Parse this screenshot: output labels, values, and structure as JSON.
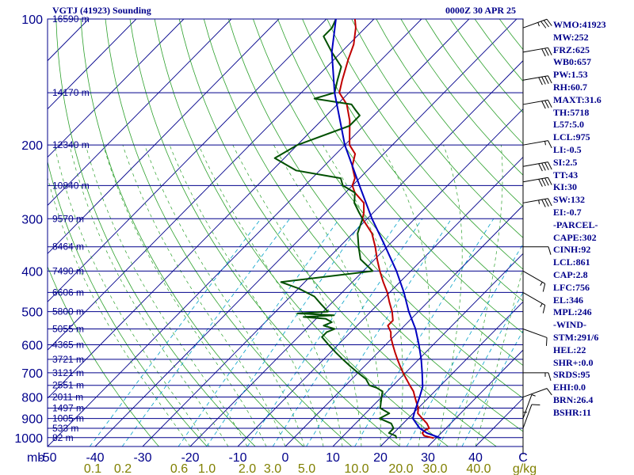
{
  "header": {
    "station": "VGTJ (41923) Sounding",
    "valid": "0000Z 30 APR 25"
  },
  "indices": [
    "WMO:41923",
    "MW:252",
    "FRZ:625",
    "WB0:657",
    "PW:1.53",
    "RH:60.7",
    "MAXT:31.6",
    "TH:5718",
    "L57:5.0",
    "LCL:975",
    "LI:-0.5",
    "SI:2.5",
    "TT:43",
    "KI:30",
    "SW:132",
    "EI:-0.7",
    "-PARCEL-",
    "CAPE:302",
    "CINH:92",
    "LCL:861",
    "CAP:2.8",
    "LFC:756",
    "EL:346",
    "MPL:246",
    "-WIND-",
    "STM:291/6",
    "HEL:22",
    "SHR+:0.0",
    "SRDS:95",
    "EHI:0.0",
    "BRN:26.4",
    "BSHR:11"
  ],
  "colors": {
    "isobar": "#00008b",
    "dry_adiabat": "#2ca02c",
    "moist_adiabat": "#2ca02c",
    "mixing_ratio": "#00a0c8",
    "temperature": "#c00000",
    "dewpoint": "#005000",
    "parcel": "#0000c0",
    "axis_text": "#00008b",
    "mixing_text": "#808000"
  },
  "chart_data": {
    "type": "line",
    "subtype": "skew-T log-P diagram",
    "xlabel": "C",
    "ylabel": "mb",
    "x_ticks": [
      "-50",
      "-40",
      "-30",
      "-20",
      "-10",
      "0",
      "10",
      "20",
      "30",
      "40"
    ],
    "xlim": [
      -50,
      50
    ],
    "ylim": [
      1050,
      100
    ],
    "y_scale": "log",
    "pressure_ticks": [
      "100",
      "200",
      "300",
      "400",
      "500",
      "600",
      "700",
      "800",
      "900",
      "1000"
    ],
    "height_labels": [
      {
        "p": 100,
        "label": "16590 m"
      },
      {
        "p": 150,
        "label": "14170 m"
      },
      {
        "p": 200,
        "label": "12340 m"
      },
      {
        "p": 250,
        "label": "10840 m"
      },
      {
        "p": 300,
        "label": "9570 m"
      },
      {
        "p": 350,
        "label": "8464 m"
      },
      {
        "p": 400,
        "label": "7490 m"
      },
      {
        "p": 450,
        "label": "6606 m"
      },
      {
        "p": 500,
        "label": "5800 m"
      },
      {
        "p": 550,
        "label": "5055 m"
      },
      {
        "p": 600,
        "label": "4365 m"
      },
      {
        "p": 650,
        "label": "3721 m"
      },
      {
        "p": 700,
        "label": "3121 m"
      },
      {
        "p": 750,
        "label": "2551 m"
      },
      {
        "p": 800,
        "label": "2011 m"
      },
      {
        "p": 850,
        "label": "1497 m"
      },
      {
        "p": 900,
        "label": "1005 m"
      },
      {
        "p": 950,
        "label": "533 m"
      },
      {
        "p": 1000,
        "label": "82 m"
      }
    ],
    "mixing_ratio_ticks": [
      "0.1",
      "0.2",
      "0.6",
      "1.0",
      "2.0",
      "3.0",
      "5.0",
      "10.0",
      "20.0",
      "30.0",
      "40.0",
      "g/kg"
    ],
    "mixing_ratio_values": [
      0.1,
      0.2,
      0.6,
      1.0,
      2.0,
      3.0,
      5.0,
      10.0,
      20.0,
      30.0,
      40.0
    ],
    "series": [
      {
        "key": "temperature",
        "points": [
          [
            1003,
            29.5
          ],
          [
            1000,
            29
          ],
          [
            990,
            27
          ],
          [
            975,
            26
          ],
          [
            960,
            26
          ],
          [
            950,
            26.5
          ],
          [
            925,
            25
          ],
          [
            900,
            23
          ],
          [
            875,
            21
          ],
          [
            850,
            20
          ],
          [
            825,
            18.5
          ],
          [
            800,
            17
          ],
          [
            775,
            15.5
          ],
          [
            750,
            13.5
          ],
          [
            725,
            11.5
          ],
          [
            700,
            9.5
          ],
          [
            675,
            7.5
          ],
          [
            650,
            5.5
          ],
          [
            625,
            3.5
          ],
          [
            600,
            1.5
          ],
          [
            575,
            -0.5
          ],
          [
            560,
            -1.5
          ],
          [
            550,
            -2.5
          ],
          [
            540,
            -3.5
          ],
          [
            525,
            -3.5
          ],
          [
            500,
            -5.5
          ],
          [
            475,
            -8
          ],
          [
            450,
            -10.5
          ],
          [
            425,
            -13.5
          ],
          [
            400,
            -16.5
          ],
          [
            375,
            -19.5
          ],
          [
            350,
            -22.5
          ],
          [
            325,
            -26
          ],
          [
            300,
            -31
          ],
          [
            290,
            -32
          ],
          [
            275,
            -34
          ],
          [
            260,
            -38
          ],
          [
            250,
            -40
          ],
          [
            240,
            -41
          ],
          [
            225,
            -44
          ],
          [
            210,
            -46
          ],
          [
            200,
            -49
          ],
          [
            175,
            -54
          ],
          [
            160,
            -58
          ],
          [
            150,
            -62
          ],
          [
            140,
            -64
          ],
          [
            125,
            -67
          ],
          [
            115,
            -69
          ],
          [
            105,
            -72
          ],
          [
            100,
            -74
          ]
        ]
      },
      {
        "key": "dewpoint",
        "points": [
          [
            1003,
            21.5
          ],
          [
            1000,
            21.5
          ],
          [
            990,
            21
          ],
          [
            975,
            19
          ],
          [
            950,
            19
          ],
          [
            925,
            17.5
          ],
          [
            900,
            14
          ],
          [
            875,
            15
          ],
          [
            850,
            12
          ],
          [
            825,
            11
          ],
          [
            800,
            10
          ],
          [
            775,
            9
          ],
          [
            760,
            7
          ],
          [
            750,
            5
          ],
          [
            725,
            3
          ],
          [
            700,
            0
          ],
          [
            675,
            -3
          ],
          [
            650,
            -6
          ],
          [
            625,
            -9
          ],
          [
            600,
            -12
          ],
          [
            575,
            -15
          ],
          [
            560,
            -15
          ],
          [
            550,
            -14
          ],
          [
            540,
            -17
          ],
          [
            530,
            -16
          ],
          [
            520,
            -18
          ],
          [
            515,
            -23
          ],
          [
            510,
            -17
          ],
          [
            505,
            -25
          ],
          [
            500,
            -19
          ],
          [
            480,
            -22
          ],
          [
            460,
            -25
          ],
          [
            440,
            -30
          ],
          [
            425,
            -35
          ],
          [
            400,
            -18
          ],
          [
            375,
            -23
          ],
          [
            350,
            -26
          ],
          [
            325,
            -29
          ],
          [
            300,
            -31
          ],
          [
            290,
            -33
          ],
          [
            275,
            -36
          ],
          [
            260,
            -38
          ],
          [
            250,
            -42
          ],
          [
            240,
            -44
          ],
          [
            230,
            -55
          ],
          [
            215,
            -62
          ],
          [
            200,
            -60
          ],
          [
            180,
            -53
          ],
          [
            170,
            -53
          ],
          [
            165,
            -55
          ],
          [
            160,
            -57
          ],
          [
            155,
            -66
          ],
          [
            150,
            -63
          ],
          [
            140,
            -65
          ],
          [
            130,
            -67
          ],
          [
            120,
            -72
          ],
          [
            110,
            -77
          ],
          [
            105,
            -77
          ],
          [
            100,
            -78
          ]
        ]
      },
      {
        "key": "parcel",
        "points": [
          [
            1003,
            31
          ],
          [
            975,
            27
          ],
          [
            950,
            24.5
          ],
          [
            900,
            21
          ],
          [
            861,
            19.8
          ],
          [
            800,
            18
          ],
          [
            756,
            16.5
          ],
          [
            700,
            13.5
          ],
          [
            650,
            10.5
          ],
          [
            600,
            7
          ],
          [
            550,
            3
          ],
          [
            500,
            -2
          ],
          [
            450,
            -7
          ],
          [
            400,
            -13
          ],
          [
            346,
            -21
          ],
          [
            300,
            -29
          ],
          [
            250,
            -38.5
          ],
          [
            200,
            -50
          ],
          [
            150,
            -63
          ],
          [
            120,
            -72
          ],
          [
            100,
            -78
          ]
        ]
      }
    ],
    "wind_barbs": [
      {
        "p": 105,
        "dir": 250,
        "kt": 35
      },
      {
        "p": 120,
        "dir": 260,
        "kt": 30
      },
      {
        "p": 140,
        "dir": 260,
        "kt": 40
      },
      {
        "p": 160,
        "dir": 260,
        "kt": 30
      },
      {
        "p": 200,
        "dir": 260,
        "kt": 15
      },
      {
        "p": 225,
        "dir": 260,
        "kt": 40
      },
      {
        "p": 245,
        "dir": 260,
        "kt": 40
      },
      {
        "p": 275,
        "dir": 260,
        "kt": 35
      },
      {
        "p": 350,
        "dir": 270,
        "kt": 10
      },
      {
        "p": 400,
        "dir": 300,
        "kt": 15
      },
      {
        "p": 450,
        "dir": 300,
        "kt": 15
      },
      {
        "p": 550,
        "dir": 290,
        "kt": 10
      },
      {
        "p": 700,
        "dir": 270,
        "kt": 15
      },
      {
        "p": 800,
        "dir": 250,
        "kt": 10
      },
      {
        "p": 900,
        "dir": 200,
        "kt": 5
      },
      {
        "p": 950,
        "dir": 200,
        "kt": 10
      },
      {
        "p": 1000,
        "dir": 180,
        "kt": 5
      }
    ]
  }
}
